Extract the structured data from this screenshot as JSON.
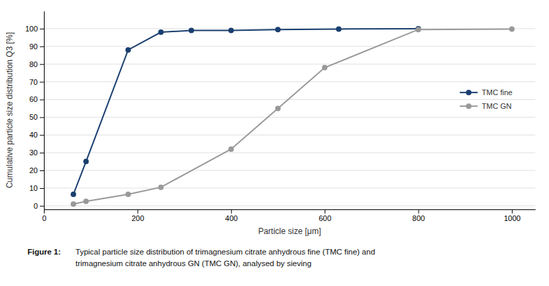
{
  "chart_data": {
    "type": "line",
    "xlabel": "Particle size [μm]",
    "ylabel": "Cumulative particle size distribution Q3 [%]",
    "series": [
      {
        "name": "TMC fine",
        "color": "#1a3f6f",
        "marker": "circle",
        "line_style": "solid",
        "x": [
          63,
          90,
          180,
          250,
          315,
          400,
          500,
          630,
          800
        ],
        "values": [
          6.5,
          25,
          88,
          98,
          99,
          99,
          99.5,
          99.8,
          100
        ]
      },
      {
        "name": "TMC GN",
        "color": "#999999",
        "marker": "circle",
        "line_style": "solid",
        "x": [
          63,
          90,
          180,
          250,
          400,
          500,
          600,
          800,
          1000
        ],
        "values": [
          1,
          2.5,
          6.5,
          10.5,
          32,
          55,
          78,
          99.5,
          99.8
        ]
      }
    ],
    "xlim": [
      0,
      1050
    ],
    "ylim": [
      -2,
      110
    ],
    "xticks": [
      0,
      200,
      400,
      600,
      800,
      1000
    ],
    "yticks": [
      0,
      10,
      20,
      30,
      40,
      50,
      60,
      70,
      80,
      90,
      100
    ],
    "grid": true,
    "legend": "right",
    "annotations": [
      "Figure 1:",
      "Typical particle size distribution of trimagnesium citrate anhydrous fine (TMC fine) and",
      "trimagnesium citrate anhydrous GN (TMC GN), analysed by sieving"
    ]
  }
}
